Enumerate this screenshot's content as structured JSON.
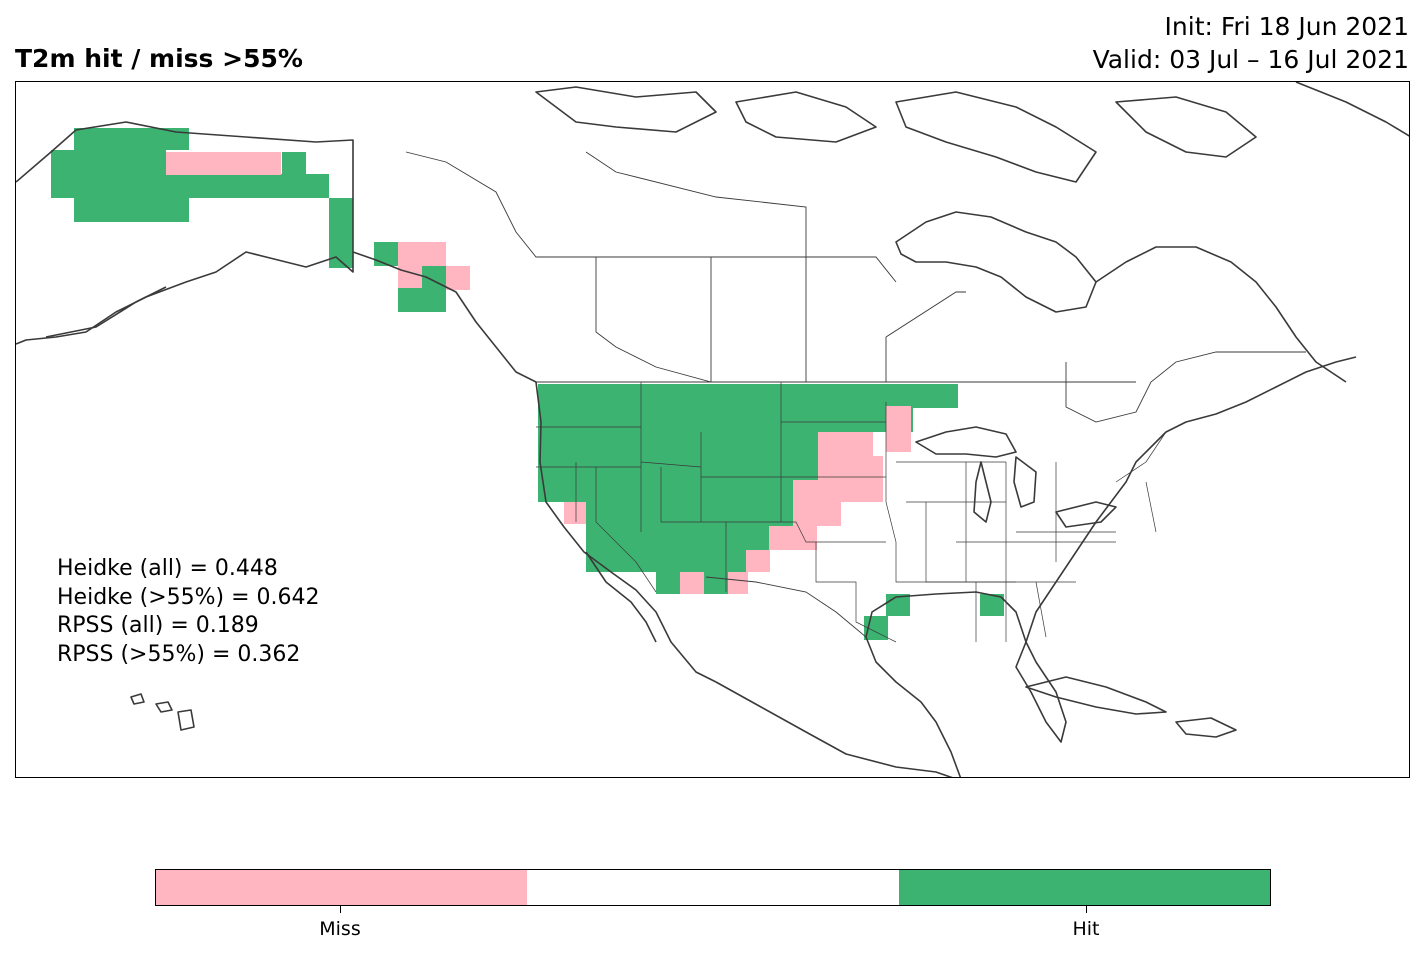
{
  "title": "T2m hit / miss  >55%",
  "init_line": "Init: Fri 18 Jun 2021",
  "valid_line": "Valid: 03 Jul – 16 Jul 2021",
  "scores": [
    "Heidke (all) = 0.448",
    "Heidke (>55%) = 0.642",
    "RPSS (all) = 0.189",
    "RPSS (>55%) = 0.362"
  ],
  "colors": {
    "miss": "#ffb6c1",
    "neutral": "#ffffff",
    "hit": "#3cb371",
    "coast": "#3a3a3a"
  },
  "legend": {
    "miss_label": "Miss",
    "hit_label": "Hit"
  }
}
